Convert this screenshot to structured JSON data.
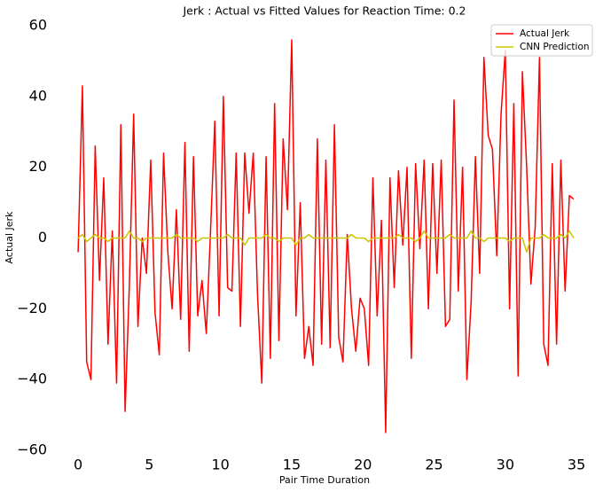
{
  "chart_data": {
    "type": "line",
    "title": "Jerk : Actual vs Fitted Values for Reaction Time: 0.2",
    "x_label": "Pair Time Duration",
    "y_label": "Actual Jerk",
    "x": [
      0,
      0.3,
      0.6,
      0.9,
      1.2,
      1.5,
      1.8,
      2.1,
      2.4,
      2.7,
      3,
      3.3,
      3.6,
      3.9,
      4.2,
      4.5,
      4.8,
      5.1,
      5.4,
      5.7,
      6,
      6.3,
      6.6,
      6.9,
      7.2,
      7.5,
      7.8,
      8.1,
      8.4,
      8.7,
      9,
      9.3,
      9.6,
      9.9,
      10.2,
      10.5,
      10.8,
      11.1,
      11.4,
      11.7,
      12,
      12.3,
      12.6,
      12.9,
      13.2,
      13.5,
      13.8,
      14.1,
      14.4,
      14.7,
      15,
      15.3,
      15.6,
      15.9,
      16.2,
      16.5,
      16.8,
      17.1,
      17.4,
      17.7,
      18,
      18.3,
      18.6,
      18.9,
      19.2,
      19.5,
      19.8,
      20.1,
      20.4,
      20.7,
      21,
      21.3,
      21.6,
      21.9,
      22.2,
      22.5,
      22.8,
      23.1,
      23.4,
      23.7,
      24,
      24.3,
      24.6,
      24.9,
      25.2,
      25.5,
      25.8,
      26.1,
      26.4,
      26.7,
      27,
      27.3,
      27.6,
      27.9,
      28.2,
      28.5,
      28.8,
      29.1,
      29.4,
      29.7,
      30,
      30.3,
      30.6,
      30.9,
      31.2,
      31.5,
      31.8,
      32.1,
      32.4,
      32.7,
      33,
      33.3,
      33.6,
      33.9,
      34.2,
      34.5,
      34.8
    ],
    "series": [
      {
        "name": "Actual Jerk",
        "color": "#ff0000",
        "values": [
          -4,
          43,
          -35,
          -40,
          26,
          -12,
          17,
          -30,
          2,
          -41,
          32,
          -49,
          -13,
          35,
          -25,
          0,
          -10,
          22,
          -21,
          -33,
          24,
          -4,
          -20,
          8,
          -23,
          27,
          -32,
          23,
          -22,
          -12,
          -27,
          2,
          33,
          -22,
          40,
          -14,
          -15,
          24,
          -25,
          24,
          7,
          24,
          -16,
          -41,
          23,
          -34,
          38,
          -29,
          28,
          8,
          56,
          -22,
          10,
          -34,
          -25,
          -36,
          28,
          -30,
          22,
          -31,
          32,
          -28,
          -35,
          1,
          -20,
          -32,
          -17,
          -20,
          -36,
          17,
          -22,
          5,
          -55,
          17,
          -14,
          19,
          -2,
          20,
          -34,
          21,
          -3,
          22,
          -20,
          21,
          -10,
          22,
          -25,
          -23,
          39,
          -15,
          20,
          -40,
          -18,
          23,
          -10,
          51,
          29,
          25,
          -5,
          35,
          53,
          -20,
          38,
          -39,
          47,
          20,
          -13,
          3,
          51,
          -30,
          -36,
          21,
          -30,
          22,
          -15,
          12,
          11
        ]
      },
      {
        "name": "CNN  Prediction",
        "color": "#c8c800",
        "values": [
          0,
          1,
          -1,
          0,
          1,
          0,
          0,
          -1,
          0,
          0,
          0,
          0,
          2,
          0,
          0,
          -1,
          0,
          0,
          0,
          0,
          0,
          0,
          0,
          1,
          0,
          0,
          0,
          0,
          -1,
          0,
          0,
          0,
          0,
          0,
          0,
          1,
          0,
          0,
          0,
          -2,
          0,
          0,
          0,
          0,
          1,
          0,
          0,
          -1,
          0,
          0,
          0,
          -2,
          0,
          0,
          1,
          0,
          0,
          0,
          0,
          0,
          0,
          0,
          0,
          0,
          1,
          0,
          0,
          0,
          -1,
          0,
          0,
          0,
          0,
          0,
          0,
          1,
          0,
          0,
          0,
          -1,
          0,
          2,
          0,
          0,
          0,
          0,
          0,
          1,
          0,
          0,
          0,
          0,
          2,
          0,
          0,
          -1,
          0,
          0,
          0,
          0,
          0,
          -1,
          0,
          0,
          0,
          -4,
          0,
          0,
          0,
          1,
          0,
          0,
          0,
          1,
          0,
          2,
          0
        ]
      }
    ],
    "xlim": [
      -1.75,
      36.55
    ],
    "ylim": [
      -60,
      60
    ],
    "xticks": [
      0,
      5,
      10,
      15,
      20,
      25,
      30,
      35
    ],
    "yticks": [
      {
        "value": -60,
        "label": "−60"
      },
      {
        "value": -40,
        "label": "−40"
      },
      {
        "value": -20,
        "label": "−20"
      },
      0,
      20,
      40,
      60
    ],
    "legend": "upper right",
    "grid": false
  }
}
